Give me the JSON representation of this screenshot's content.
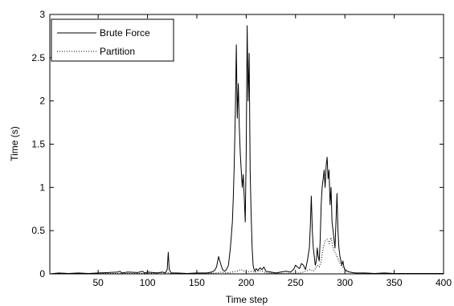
{
  "chart_data": {
    "type": "line",
    "xlabel": "Time step",
    "ylabel": "Time (s)",
    "xlim": [
      1,
      400
    ],
    "ylim": [
      0,
      3
    ],
    "xticks": [
      50,
      100,
      150,
      200,
      250,
      300,
      350,
      400
    ],
    "yticks": [
      0,
      0.5,
      1,
      1.5,
      2,
      2.5,
      3
    ],
    "ytick_labels": [
      "0",
      "0.5",
      "1",
      "1.5",
      "2",
      "2.5",
      "3"
    ],
    "grid": false,
    "legend_position": "top-left",
    "series": [
      {
        "name": "Brute Force",
        "style": "solid",
        "color": "#000000",
        "x": [
          1,
          5,
          10,
          20,
          30,
          40,
          50,
          60,
          70,
          72,
          74,
          80,
          90,
          95,
          97,
          100,
          110,
          115,
          118,
          120,
          121,
          122,
          124,
          130,
          140,
          150,
          160,
          165,
          168,
          170,
          172,
          174,
          176,
          178,
          180,
          182,
          184,
          186,
          187,
          188,
          189,
          190,
          191,
          192,
          193,
          194,
          195,
          196,
          197,
          198,
          199,
          200,
          201,
          202,
          203,
          204,
          205,
          206,
          207,
          208,
          209,
          210,
          212,
          214,
          216,
          218,
          220,
          225,
          230,
          235,
          240,
          245,
          248,
          250,
          252,
          254,
          256,
          258,
          260,
          262,
          264,
          265,
          266,
          267,
          268,
          269,
          270,
          271,
          272,
          273,
          274,
          275,
          276,
          277,
          278,
          279,
          280,
          281,
          282,
          283,
          284,
          285,
          286,
          287,
          288,
          289,
          290,
          291,
          292,
          293,
          294,
          295,
          296,
          297,
          298,
          299,
          300,
          302,
          305,
          310,
          320,
          330,
          340,
          350,
          360,
          370,
          380,
          390,
          400
        ],
        "values": [
          0,
          0.005,
          0.01,
          0.005,
          0.01,
          0.005,
          0.01,
          0.015,
          0.02,
          0.03,
          0.01,
          0.02,
          0.015,
          0.03,
          0.01,
          0.02,
          0.01,
          0.02,
          0.01,
          0.05,
          0.25,
          0.05,
          0.01,
          0.01,
          0.005,
          0.01,
          0.01,
          0.02,
          0.04,
          0.08,
          0.2,
          0.12,
          0.05,
          0.03,
          0.05,
          0.1,
          0.3,
          0.6,
          0.9,
          1.3,
          1.9,
          2.65,
          1.8,
          2.2,
          1.7,
          1.4,
          1.2,
          1.0,
          1.15,
          0.9,
          0.6,
          1.4,
          2.87,
          2.0,
          2.55,
          1.2,
          0.7,
          0.3,
          0.1,
          0.05,
          0.03,
          0.06,
          0.04,
          0.07,
          0.05,
          0.08,
          0.03,
          0.02,
          0.01,
          0.02,
          0.03,
          0.02,
          0.05,
          0.1,
          0.08,
          0.06,
          0.12,
          0.1,
          0.05,
          0.15,
          0.3,
          0.55,
          0.9,
          0.5,
          0.3,
          0.2,
          0.1,
          0.15,
          0.3,
          0.2,
          0.15,
          0.4,
          0.8,
          1.0,
          1.1,
          1.2,
          1.0,
          1.25,
          1.35,
          1.1,
          1.2,
          0.8,
          1.0,
          0.6,
          0.5,
          0.4,
          0.3,
          0.6,
          0.93,
          0.5,
          0.3,
          0.2,
          0.15,
          0.1,
          0.15,
          0.08,
          0.05,
          0.03,
          0.02,
          0.01,
          0.01,
          0.005,
          0.01,
          0.005,
          0.005,
          0.005,
          0.005,
          0.005,
          0.005
        ]
      },
      {
        "name": "Partition",
        "style": "dotted",
        "color": "#000000",
        "x": [
          1,
          50,
          100,
          120,
          122,
          150,
          170,
          175,
          180,
          185,
          190,
          195,
          200,
          205,
          210,
          215,
          220,
          240,
          255,
          260,
          265,
          268,
          270,
          272,
          274,
          276,
          278,
          280,
          282,
          284,
          286,
          288,
          290,
          292,
          294,
          296,
          300,
          305,
          310,
          330,
          360,
          400
        ],
        "values": [
          0,
          0.005,
          0.005,
          0.02,
          0.005,
          0.005,
          0.01,
          0.02,
          0.01,
          0.02,
          0.03,
          0.05,
          0.02,
          0.03,
          0.02,
          0.04,
          0.01,
          0.005,
          0.01,
          0.03,
          0.05,
          0.03,
          0.06,
          0.1,
          0.08,
          0.15,
          0.3,
          0.38,
          0.4,
          0.35,
          0.42,
          0.3,
          0.25,
          0.2,
          0.15,
          0.1,
          0.05,
          0.02,
          0.01,
          0.005,
          0.005,
          0.005
        ]
      }
    ]
  }
}
